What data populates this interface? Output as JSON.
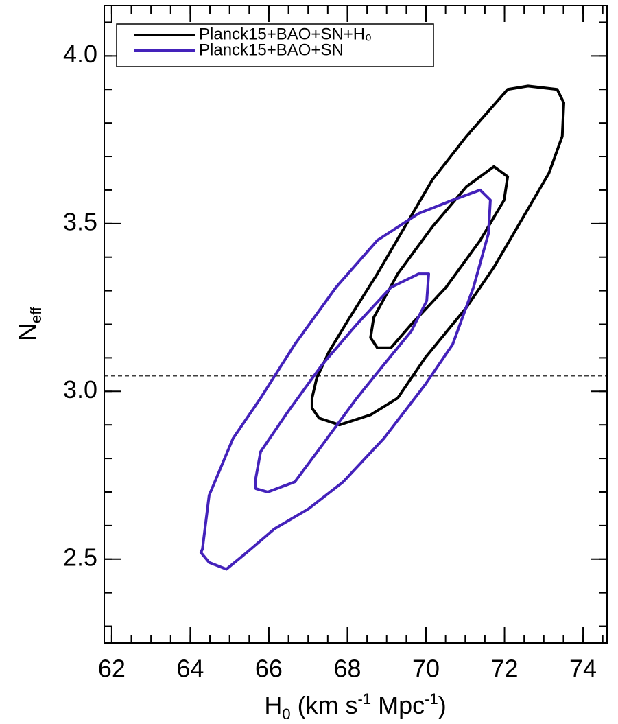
{
  "chart_data": {
    "type": "contour",
    "xlabel": [
      "H",
      "0",
      " (km s",
      "-1",
      " Mpc",
      "-1",
      ")"
    ],
    "ylabel": [
      "N",
      "eff"
    ],
    "xlim": [
      61.81,
      74.61
    ],
    "ylim": [
      2.25,
      4.15
    ],
    "xticks": [
      62,
      64,
      66,
      68,
      70,
      72,
      74
    ],
    "yticks": [
      {
        "value": 2.5,
        "label": "2.5"
      },
      {
        "value": 3.0,
        "label": "3.0"
      },
      {
        "value": 3.5,
        "label": "3.5"
      },
      {
        "value": 4.0,
        "label": "4.0"
      }
    ],
    "x_minor_step": 0.5,
    "y_minor_step": 0.1,
    "reference_line": 3.046,
    "legend_position": "upper left",
    "series": [
      {
        "name": "Planck15+BAO+SN+H₀",
        "color": "#000000",
        "contours": [
          {
            "x": [
              67.1,
              67.22,
              67.54,
              68.06,
              68.76,
              69.46,
              70.16,
              71.03,
              72.08,
              72.6,
              73.34,
              73.51,
              73.47,
              73.13,
              72.43,
              71.73,
              71.03,
              69.98,
              69.28,
              68.59,
              67.8,
              67.28,
              67.1
            ],
            "y": [
              2.98,
              3.04,
              3.12,
              3.22,
              3.35,
              3.49,
              3.63,
              3.76,
              3.9,
              3.91,
              3.9,
              3.86,
              3.76,
              3.65,
              3.51,
              3.37,
              3.25,
              3.1,
              2.98,
              2.93,
              2.9,
              2.92,
              2.95
            ]
          },
          {
            "x": [
              68.59,
              68.67,
              69.28,
              70.16,
              71.03,
              71.73,
              72.08,
              71.99,
              71.38,
              70.51,
              69.63,
              69.11,
              68.76
            ],
            "y": [
              3.16,
              3.22,
              3.35,
              3.49,
              3.61,
              3.67,
              3.64,
              3.57,
              3.45,
              3.31,
              3.2,
              3.13,
              3.13
            ]
          }
        ]
      },
      {
        "name": "Planck15+BAO+SN",
        "color": "#4422bb",
        "contours": [
          {
            "x": [
              64.31,
              64.48,
              65.09,
              65.79,
              66.66,
              67.71,
              68.76,
              69.81,
              70.68,
              71.38,
              71.64,
              71.59,
              71.21,
              70.68,
              69.98,
              68.93,
              67.89,
              67.01,
              66.14,
              65.44,
              64.92,
              64.48,
              64.27
            ],
            "y": [
              2.53,
              2.69,
              2.86,
              2.98,
              3.14,
              3.31,
              3.45,
              3.53,
              3.57,
              3.6,
              3.57,
              3.47,
              3.31,
              3.14,
              3.02,
              2.86,
              2.73,
              2.65,
              2.59,
              2.52,
              2.47,
              2.49,
              2.52
            ]
          },
          {
            "x": [
              65.65,
              65.79,
              66.49,
              67.36,
              68.24,
              69.11,
              69.81,
              70.07,
              70.02,
              69.63,
              68.93,
              68.24,
              67.36,
              66.66,
              65.97,
              65.67
            ],
            "y": [
              2.73,
              2.82,
              2.94,
              3.08,
              3.2,
              3.31,
              3.35,
              3.35,
              3.27,
              3.18,
              3.08,
              2.98,
              2.84,
              2.73,
              2.7,
              2.71
            ]
          }
        ]
      }
    ]
  }
}
